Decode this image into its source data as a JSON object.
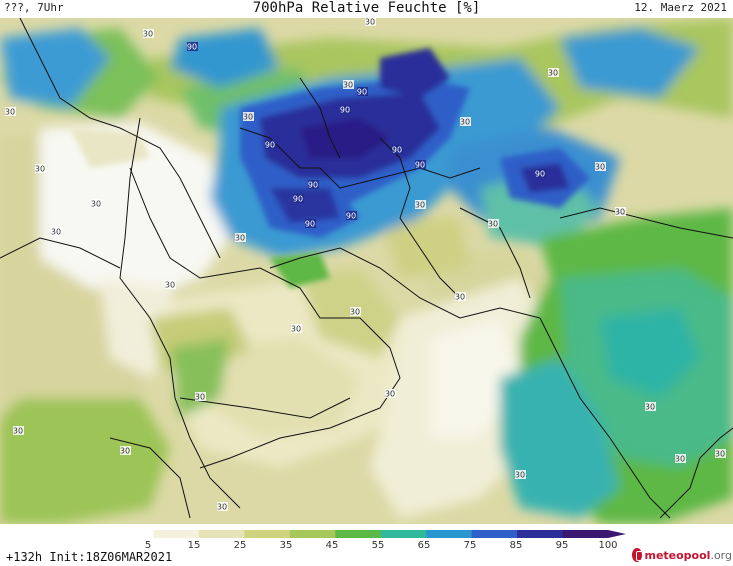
{
  "header": {
    "left_label": "???, 7Uhr",
    "title": "700hPa Relative Feuchte [%]",
    "date": "12. Maerz 2021"
  },
  "map": {
    "variable": "relative humidity 700hPa",
    "contour_labels_light": [
      "30",
      "30",
      "30",
      "30",
      "30",
      "30",
      "30",
      "30",
      "30",
      "30",
      "30",
      "30",
      "30",
      "30",
      "30",
      "30",
      "30",
      "30",
      "30",
      "30",
      "30",
      "30",
      "30",
      "30",
      "30",
      "30",
      "30",
      "30"
    ],
    "contour_labels_dark": [
      "90",
      "90",
      "90",
      "90",
      "90",
      "90",
      "90",
      "90",
      "90",
      "90",
      "90"
    ]
  },
  "colorbar": {
    "ticks": [
      "5",
      "15",
      "25",
      "35",
      "45",
      "55",
      "65",
      "75",
      "85",
      "95",
      "100"
    ],
    "colors": [
      "#ffffff",
      "#f4f1dc",
      "#e6e3b8",
      "#cfd27f",
      "#a6c85a",
      "#5db845",
      "#2fb89a",
      "#2a96cf",
      "#2f5fc8",
      "#2a2f9a",
      "#3a1770"
    ]
  },
  "footer": {
    "init_text": "+132h Init:18Z06MAR2021",
    "logo_main": "meteopool",
    "logo_suffix": ".org"
  }
}
